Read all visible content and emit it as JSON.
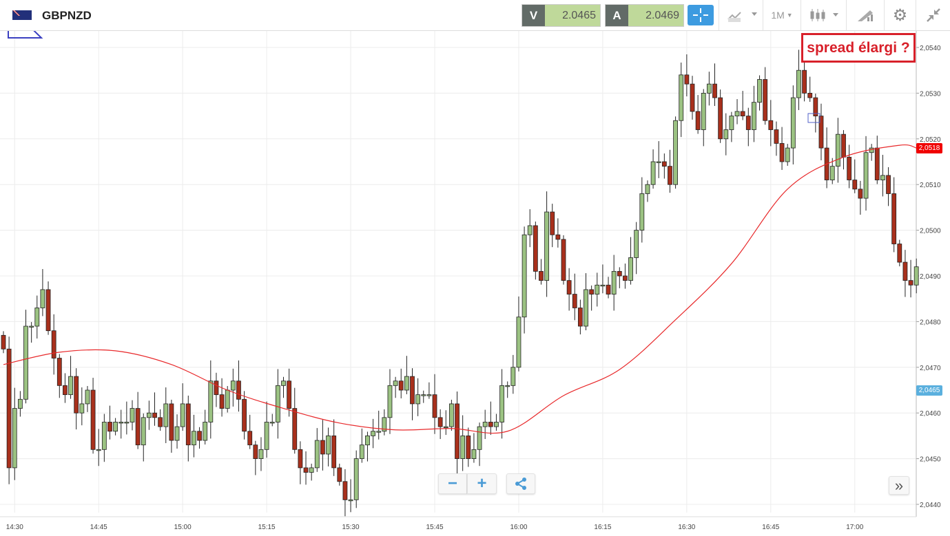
{
  "header": {
    "symbol": "GBPNZD",
    "sell_label": "V",
    "sell_price": "2.0465",
    "buy_label": "A",
    "buy_price": "2.0469",
    "timeframe": "1M"
  },
  "icons": [
    "flag-gbp-nzd-icon",
    "crosshair-icon",
    "indicators-icon",
    "candlestick-type-icon",
    "draw-tools-icon",
    "gear-icon",
    "collapse-icon",
    "share-icon",
    "fast-forward-icon"
  ],
  "annotation": "spread élargi ?",
  "tags": {
    "ma": "2,0518",
    "bid": "2,0465"
  },
  "colors": {
    "up": "#9bc282",
    "down": "#a8301c",
    "ma": "#e8282a",
    "bid_tag": "#5bb0de",
    "ma_tag": "#f00000",
    "accent": "#3d9be0"
  },
  "controls": {
    "zoom_out": "−",
    "zoom_in": "+",
    "scroll": "»"
  },
  "chart_data": {
    "type": "candlestick",
    "interval": "1 minute",
    "ylim": [
      2.0436,
      2.0546
    ],
    "yticks": [
      "2,0440",
      "2,0450",
      "2,0460",
      "2,0470",
      "2,0480",
      "2,0490",
      "2,0500",
      "2,0510",
      "2,0520",
      "2,0530",
      "2,0540"
    ],
    "ytick_values": [
      2.044,
      2.045,
      2.046,
      2.047,
      2.048,
      2.049,
      2.05,
      2.051,
      2.052,
      2.053,
      2.054
    ],
    "xticks": [
      "14:30",
      "14:45",
      "15:00",
      "15:15",
      "15:30",
      "15:45",
      "16:00",
      "16:15",
      "16:30",
      "16:45",
      "17:00"
    ],
    "start_minute": "14:28",
    "first_open": 2.0477,
    "closes": [
      2.0474,
      2.0448,
      2.0461,
      2.0463,
      2.0479,
      2.0479,
      2.0483,
      2.0487,
      2.0478,
      2.0472,
      2.0466,
      2.0464,
      2.0468,
      2.046,
      2.0462,
      2.0465,
      2.0452,
      2.0452,
      2.0458,
      2.0456,
      2.0458,
      2.0458,
      2.0458,
      2.0461,
      2.0453,
      2.0459,
      2.046,
      2.0459,
      2.0457,
      2.0462,
      2.0454,
      2.0457,
      2.0462,
      2.0453,
      2.0456,
      2.0454,
      2.0458,
      2.0467,
      2.0464,
      2.0461,
      2.0465,
      2.0467,
      2.0463,
      2.0456,
      2.0453,
      2.045,
      2.0452,
      2.0458,
      2.0458,
      2.0466,
      2.0467,
      2.0461,
      2.0452,
      2.0448,
      2.0447,
      2.0448,
      2.0454,
      2.0451,
      2.0455,
      2.0448,
      2.0445,
      2.0441,
      2.0441,
      2.045,
      2.0453,
      2.0455,
      2.0456,
      2.0456,
      2.0459,
      2.0466,
      2.0467,
      2.0465,
      2.0468,
      2.0462,
      2.0464,
      2.0464,
      2.0464,
      2.0459,
      2.0457,
      2.0457,
      2.0462,
      2.045,
      2.0455,
      2.045,
      2.0452,
      2.0457,
      2.0458,
      2.0457,
      2.0458,
      2.0466,
      2.0466,
      2.047,
      2.0481,
      2.0499,
      2.0501,
      2.0491,
      2.0489,
      2.0504,
      2.0499,
      2.0498,
      2.0489,
      2.0486,
      2.0483,
      2.0479,
      2.0487,
      2.0486,
      2.0488,
      2.0488,
      2.0486,
      2.0491,
      2.049,
      2.0489,
      2.0494,
      2.05,
      2.0508,
      2.051,
      2.0515,
      2.0515,
      2.0514,
      2.051,
      2.0524,
      2.0534,
      2.0532,
      2.0526,
      2.0522,
      2.053,
      2.0532,
      2.0529,
      2.052,
      2.0522,
      2.0525,
      2.0526,
      2.0525,
      2.0522,
      2.0528,
      2.0533,
      2.0524,
      2.0522,
      2.0519,
      2.0515,
      2.0518,
      2.0529,
      2.0535,
      2.053,
      2.0529,
      2.0525,
      2.0518,
      2.0511,
      2.0514,
      2.0521,
      2.0516,
      2.0511,
      2.0509,
      2.0507,
      2.0517,
      2.0518,
      2.0511,
      2.0512,
      2.0508,
      2.0497,
      2.0493,
      2.0489,
      2.0488,
      2.0492
    ],
    "ma_samples_every": 10,
    "ma": [
      2.04706,
      2.04733,
      2.04736,
      2.04706,
      2.0465,
      2.0461,
      2.04578,
      2.04563,
      2.04566,
      2.0456,
      2.04638,
      2.04695,
      2.04804,
      2.04927,
      2.0509,
      2.0516,
      2.05186,
      2.0518
    ]
  }
}
